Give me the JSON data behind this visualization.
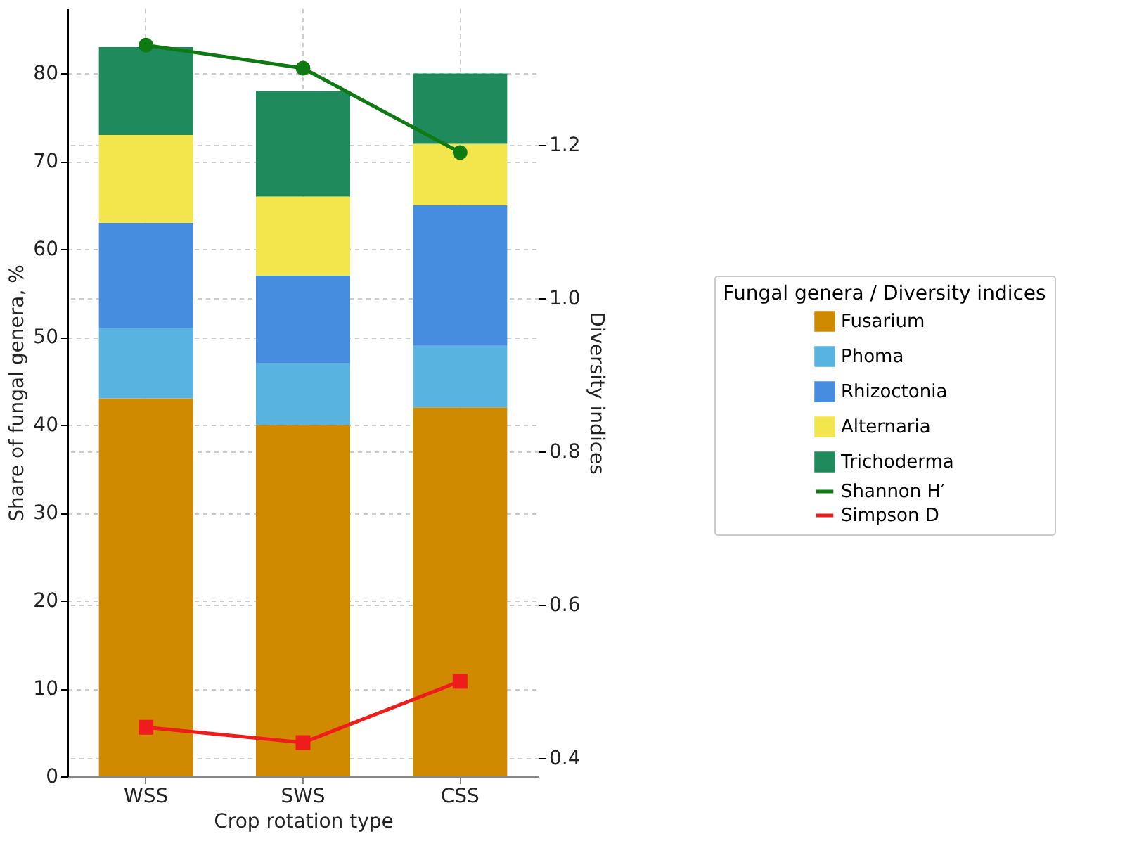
{
  "chart_data": {
    "type": "bar",
    "stacked": true,
    "categories": [
      "WSS",
      "SWS",
      "CSS"
    ],
    "xlabel": "Crop rotation type",
    "ylabel": "Share of fungal genera, %",
    "y2label": "Diversity indices",
    "legend_title": "Fungal genera / Diversity indices",
    "legend": "right",
    "grid": true,
    "ylim": [
      0,
      87.4
    ],
    "yticks": [
      0,
      10,
      20,
      30,
      40,
      50,
      60,
      70,
      80
    ],
    "y2lim": [
      0.376,
      1.378
    ],
    "y2ticks": [
      0.4,
      0.6,
      0.8,
      {
        "value": 1,
        "label": "1.0"
      },
      1.2
    ],
    "series": [
      {
        "name": "Fusarium",
        "color": "#cf8a00",
        "values": [
          43,
          40,
          42
        ]
      },
      {
        "name": "Phoma",
        "color": "#58b3e0",
        "values": [
          8,
          7,
          7
        ]
      },
      {
        "name": "Rhizoctonia",
        "color": "#468de0",
        "values": [
          12,
          10,
          16
        ]
      },
      {
        "name": "Alternaria",
        "color": "#f2e64c",
        "values": [
          10,
          9,
          7
        ]
      },
      {
        "name": "Trichoderma",
        "color": "#1f8a5c",
        "values": [
          10,
          12,
          8
        ]
      },
      {
        "name": "Shannon H′",
        "color": "#0f7a12",
        "type": "line",
        "axis": "y2",
        "marker": "circle",
        "line_style": "solid",
        "values": [
          1.33,
          1.3,
          1.19
        ]
      },
      {
        "name": "Simpson D",
        "color": "#ee1c1c",
        "type": "line",
        "axis": "y2",
        "marker": "square",
        "line_style": "solid",
        "values": [
          0.44,
          0.42,
          0.5
        ]
      }
    ]
  }
}
